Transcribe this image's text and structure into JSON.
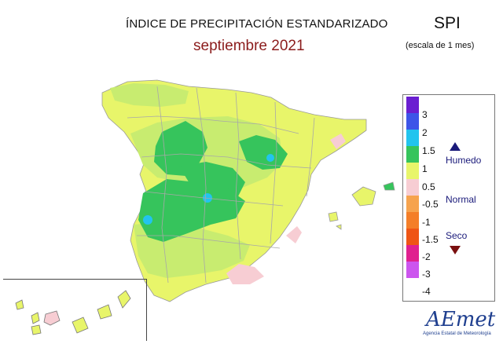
{
  "header": {
    "title": "ÍNDICE DE PRECIPITACIÓN ESTANDARIZADO",
    "date": "septiembre 2021",
    "index_name": "SPI",
    "scale": "(escala de 1 mes)"
  },
  "legend": {
    "ticks": [
      "3",
      "2",
      "1.5",
      "1",
      "0.5",
      "-0.5",
      "-1",
      "-1.5",
      "-2",
      "-3",
      "-4"
    ],
    "colors": [
      "#6a1fd1",
      "#3d55e8",
      "#22c4ee",
      "#36c45c",
      "#e8f56a",
      "#f7cdd3",
      "#f6a34e",
      "#f47e28",
      "#ef5515",
      "#e0208f",
      "#cc55ee"
    ],
    "humedo": "Humedo",
    "normal": "Normal",
    "seco": "Seco"
  },
  "map": {
    "region": "Spain mainland, Balearic and Canary Islands",
    "colors": {
      "normal": "#e8f56a",
      "moderate_wet": "#c8ec70",
      "wet": "#36c45c",
      "very_wet": "#22c4ee",
      "dry": "#f7cdd3",
      "borders": "#a8a8a8"
    }
  },
  "logo": {
    "name": "AEMET",
    "text": "AEmet",
    "subtitle": "Agencia Estatal de Meteorología"
  }
}
